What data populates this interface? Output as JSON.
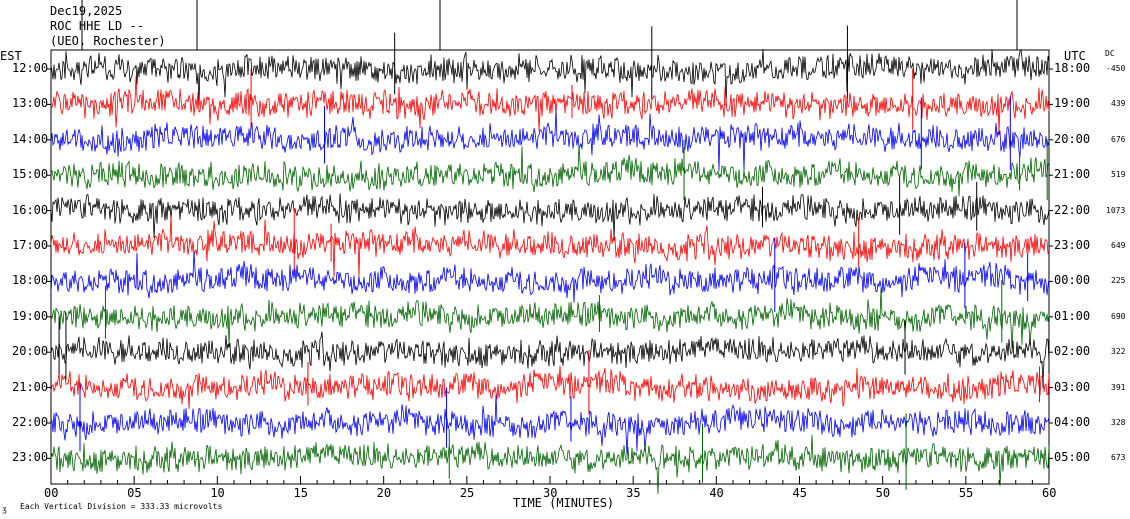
{
  "header": {
    "date": "Dec19,2025",
    "station": "ROC HHE LD --",
    "location": "(UEO, Rochester)"
  },
  "left_axis_title": "EST",
  "right_axis_title": "UTC",
  "dc_title": "DC",
  "footer": {
    "scale_note": "Each Vertical Division =  333.33 microvolts",
    "corner_mark": "ӡ"
  },
  "colors": {
    "black": "#000000",
    "red": "#ff0000",
    "blue": "#0000ff",
    "green": "#006400"
  },
  "chart_data": {
    "type": "line",
    "xlabel": "TIME (MINUTES)",
    "xlim": [
      0,
      60
    ],
    "x_ticks": [
      "00",
      "05",
      "10",
      "15",
      "20",
      "25",
      "30",
      "35",
      "40",
      "45",
      "50",
      "55",
      "60"
    ],
    "series": [
      {
        "est": "12:00",
        "utc": "18:00",
        "dc": "-450",
        "color": "black"
      },
      {
        "est": "13:00",
        "utc": "19:00",
        "dc": "439",
        "color": "red"
      },
      {
        "est": "14:00",
        "utc": "20:00",
        "dc": "676",
        "color": "blue"
      },
      {
        "est": "15:00",
        "utc": "21:00",
        "dc": "519",
        "color": "green"
      },
      {
        "est": "16:00",
        "utc": "22:00",
        "dc": "1073",
        "color": "black"
      },
      {
        "est": "17:00",
        "utc": "23:00",
        "dc": "649",
        "color": "red"
      },
      {
        "est": "18:00",
        "utc": "00:00",
        "dc": "225",
        "color": "blue"
      },
      {
        "est": "19:00",
        "utc": "01:00",
        "dc": "690",
        "color": "green"
      },
      {
        "est": "20:00",
        "utc": "02:00",
        "dc": "322",
        "color": "black"
      },
      {
        "est": "21:00",
        "utc": "03:00",
        "dc": "391",
        "color": "red"
      },
      {
        "est": "22:00",
        "utc": "04:00",
        "dc": "328",
        "color": "blue"
      },
      {
        "est": "23:00",
        "utc": "05:00",
        "dc": "673",
        "color": "green"
      }
    ]
  }
}
